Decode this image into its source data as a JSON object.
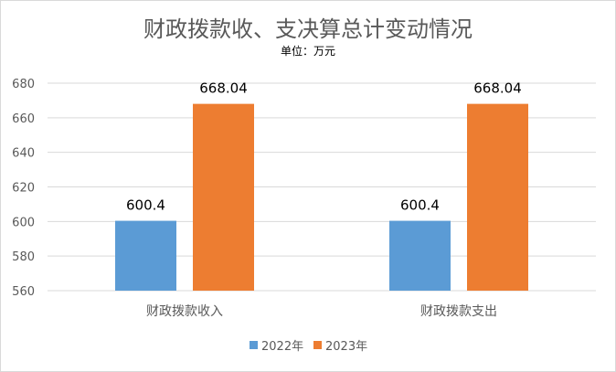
{
  "chart_data": {
    "type": "bar",
    "title": "财政拨款收、支决算总计变动情况",
    "subtitle": "单位：万元",
    "categories": [
      "财政拨款收入",
      "财政拨款支出"
    ],
    "series": [
      {
        "name": "2022年",
        "values": [
          600.4,
          600.4
        ],
        "color": "#5b9bd5"
      },
      {
        "name": "2023年",
        "values": [
          668.04,
          668.04
        ],
        "color": "#ed7d31"
      }
    ],
    "ylim": [
      560,
      680
    ],
    "yticks": [
      560,
      580,
      600,
      620,
      640,
      660,
      680
    ],
    "grid": true,
    "legend": "bottom",
    "data_labels": true
  }
}
